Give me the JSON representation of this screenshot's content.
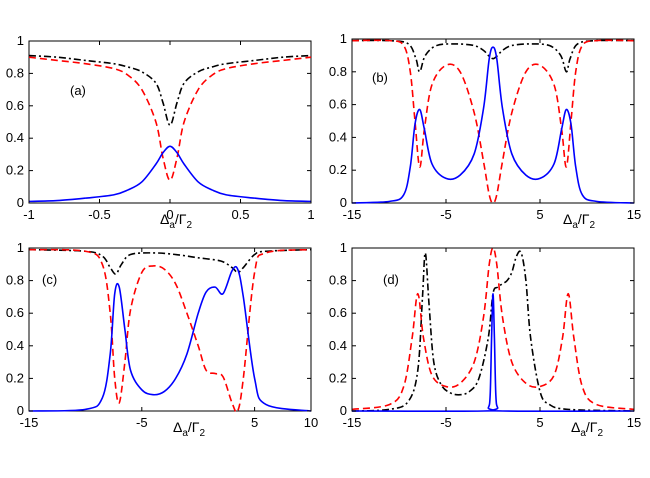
{
  "chart_data": [
    {
      "panel_label": "(a)",
      "type": "line",
      "xlabel": {
        "main1": "Δ",
        "sub1": "a",
        "slash": "/Γ",
        "sub2": "2"
      },
      "xlim": [
        -1,
        1
      ],
      "ylim": [
        0,
        1
      ],
      "xticks": [
        "-1",
        "-0.5",
        "0",
        "0.5",
        "1"
      ],
      "yticks": [
        "0",
        "0.2",
        "0.4",
        "0.6",
        "0.8",
        "1"
      ],
      "series": [
        {
          "style": "dashdot",
          "color": "#000000",
          "x": [
            -1,
            -0.8,
            -0.6,
            -0.4,
            -0.3,
            -0.2,
            -0.1,
            -0.05,
            0,
            0.05,
            0.1,
            0.2,
            0.3,
            0.4,
            0.6,
            0.8,
            1
          ],
          "y": [
            0.91,
            0.9,
            0.88,
            0.86,
            0.84,
            0.81,
            0.74,
            0.62,
            0.48,
            0.62,
            0.74,
            0.81,
            0.84,
            0.86,
            0.88,
            0.9,
            0.91
          ]
        },
        {
          "style": "dashed",
          "color": "#ff0000",
          "x": [
            -1,
            -0.8,
            -0.6,
            -0.4,
            -0.3,
            -0.2,
            -0.1,
            -0.05,
            0,
            0.05,
            0.1,
            0.2,
            0.3,
            0.4,
            0.6,
            0.8,
            1
          ],
          "y": [
            0.9,
            0.88,
            0.86,
            0.83,
            0.79,
            0.7,
            0.5,
            0.28,
            0.14,
            0.28,
            0.5,
            0.7,
            0.79,
            0.83,
            0.86,
            0.88,
            0.9
          ]
        },
        {
          "style": "solid",
          "color": "#0000ff",
          "x": [
            -1,
            -0.8,
            -0.6,
            -0.4,
            -0.3,
            -0.2,
            -0.1,
            -0.05,
            0,
            0.05,
            0.1,
            0.2,
            0.3,
            0.4,
            0.6,
            0.8,
            1
          ],
          "y": [
            0.01,
            0.015,
            0.03,
            0.05,
            0.08,
            0.13,
            0.24,
            0.31,
            0.35,
            0.31,
            0.24,
            0.13,
            0.08,
            0.05,
            0.03,
            0.015,
            0.01
          ]
        }
      ]
    },
    {
      "panel_label": "(b)",
      "type": "line",
      "xlabel": {
        "main1": "Δ",
        "sub1": "a",
        "slash": "/Γ",
        "sub2": "2"
      },
      "xlim": [
        -15,
        15
      ],
      "ylim": [
        0,
        1
      ],
      "xticks": [
        "-15",
        "-5",
        "5",
        "15"
      ],
      "yticks": [
        "0",
        "0.2",
        "0.4",
        "0.6",
        "0.8",
        "1"
      ],
      "series": [
        {
          "style": "dashdot",
          "color": "#000000",
          "x": [
            -15,
            -11,
            -9,
            -8.2,
            -7.8,
            -7.2,
            -6,
            -4,
            -2,
            -1,
            -0.5,
            0,
            0.5,
            1,
            2,
            4,
            6,
            7.2,
            7.8,
            8.2,
            9,
            11,
            15
          ],
          "y": [
            0.99,
            0.99,
            0.97,
            0.88,
            0.8,
            0.9,
            0.96,
            0.97,
            0.96,
            0.93,
            0.9,
            0.88,
            0.9,
            0.93,
            0.96,
            0.97,
            0.96,
            0.9,
            0.8,
            0.88,
            0.97,
            0.99,
            0.99
          ]
        },
        {
          "style": "dashed",
          "color": "#ff0000",
          "x": [
            -15,
            -11,
            -9.5,
            -8.8,
            -8.3,
            -7.8,
            -7.3,
            -6.5,
            -5,
            -3.5,
            -2,
            -1,
            -0.4,
            0,
            0.4,
            1,
            2,
            3.5,
            5,
            6.5,
            7.3,
            7.8,
            8.3,
            8.8,
            9.5,
            11,
            15
          ],
          "y": [
            0.99,
            0.99,
            0.96,
            0.8,
            0.5,
            0.22,
            0.45,
            0.72,
            0.84,
            0.8,
            0.55,
            0.25,
            0.05,
            0.0,
            0.05,
            0.25,
            0.55,
            0.8,
            0.84,
            0.72,
            0.45,
            0.22,
            0.5,
            0.8,
            0.96,
            0.99,
            0.99
          ]
        },
        {
          "style": "solid",
          "color": "#0000ff",
          "x": [
            -15,
            -11,
            -9.5,
            -8.8,
            -8.3,
            -7.8,
            -7.3,
            -6.5,
            -5,
            -3.5,
            -2,
            -1,
            -0.4,
            0,
            0.4,
            1,
            2,
            3.5,
            5,
            6.5,
            7.3,
            7.8,
            8.3,
            8.8,
            9.5,
            11,
            15
          ],
          "y": [
            0.0,
            0.01,
            0.05,
            0.22,
            0.48,
            0.57,
            0.45,
            0.24,
            0.15,
            0.17,
            0.3,
            0.58,
            0.88,
            0.95,
            0.88,
            0.58,
            0.3,
            0.17,
            0.15,
            0.24,
            0.45,
            0.57,
            0.48,
            0.22,
            0.05,
            0.01,
            0.0
          ]
        }
      ]
    },
    {
      "panel_label": "(c)",
      "type": "line",
      "xlabel": {
        "main1": "Δ",
        "sub1": "a",
        "slash": "/Γ",
        "sub2": "2"
      },
      "xlim": [
        -15,
        10
      ],
      "ylim": [
        0,
        1
      ],
      "xticks": [
        "-15",
        "-5",
        "5",
        "10"
      ],
      "yticks": [
        "0",
        "0.2",
        "0.4",
        "0.6",
        "0.8",
        "1"
      ],
      "series": [
        {
          "style": "dashdot",
          "color": "#000000",
          "x": [
            -15,
            -10,
            -8.5,
            -7.8,
            -7.3,
            -6.8,
            -6,
            -4,
            -2,
            0,
            2,
            3,
            3.5,
            4,
            5,
            6,
            10
          ],
          "y": [
            0.99,
            0.98,
            0.95,
            0.88,
            0.84,
            0.9,
            0.96,
            0.97,
            0.96,
            0.94,
            0.92,
            0.88,
            0.85,
            0.88,
            0.96,
            0.98,
            0.99
          ]
        },
        {
          "style": "dashed",
          "color": "#ff0000",
          "x": [
            -15,
            -10,
            -8.5,
            -7.8,
            -7.4,
            -7,
            -6.5,
            -6,
            -5,
            -4,
            -3,
            -2,
            -1,
            0,
            0.7,
            1.5,
            2.2,
            3,
            3.5,
            4,
            5,
            6,
            10
          ],
          "y": [
            0.99,
            0.98,
            0.9,
            0.6,
            0.2,
            0.05,
            0.3,
            0.62,
            0.85,
            0.89,
            0.87,
            0.78,
            0.6,
            0.4,
            0.25,
            0.23,
            0.21,
            0.05,
            0.0,
            0.2,
            0.85,
            0.97,
            0.99
          ]
        },
        {
          "style": "solid",
          "color": "#0000ff",
          "x": [
            -15,
            -10,
            -8.5,
            -7.8,
            -7.4,
            -7,
            -6.5,
            -6,
            -5,
            -4,
            -3,
            -2,
            -1,
            0,
            0.7,
            1.5,
            2.2,
            3,
            3.5,
            4,
            5,
            6,
            10
          ],
          "y": [
            0.0,
            0.01,
            0.08,
            0.35,
            0.72,
            0.76,
            0.5,
            0.25,
            0.13,
            0.1,
            0.12,
            0.2,
            0.35,
            0.6,
            0.73,
            0.76,
            0.72,
            0.86,
            0.87,
            0.7,
            0.2,
            0.04,
            0.0
          ]
        }
      ]
    },
    {
      "panel_label": "(d)",
      "type": "line",
      "xlabel": {
        "main1": "Δ",
        "sub1": "a",
        "slash": "/Γ",
        "sub2": "2"
      },
      "xlim": [
        -15,
        15
      ],
      "ylim": [
        0,
        1
      ],
      "xticks": [
        "-15",
        "-5",
        "5",
        "15"
      ],
      "yticks": [
        "0",
        "0.2",
        "0.4",
        "0.6",
        "0.8",
        "1"
      ],
      "series": [
        {
          "style": "dashdot",
          "color": "#000000",
          "x": [
            -15,
            -11,
            -9,
            -8,
            -7.5,
            -7.2,
            -6.8,
            -6.3,
            -5.5,
            -4.5,
            -3.5,
            -2.5,
            -1.5,
            -0.5,
            0,
            0.5,
            1,
            1.5,
            2,
            2.5,
            3,
            3.5,
            4,
            5,
            6,
            8,
            15
          ],
          "y": [
            0.0,
            0.01,
            0.06,
            0.25,
            0.7,
            0.97,
            0.65,
            0.3,
            0.16,
            0.11,
            0.1,
            0.12,
            0.2,
            0.45,
            0.72,
            0.76,
            0.78,
            0.8,
            0.85,
            0.95,
            0.97,
            0.8,
            0.45,
            0.12,
            0.04,
            0.01,
            0.0
          ]
        },
        {
          "style": "dashed",
          "color": "#ff0000",
          "x": [
            -15,
            -11,
            -9.5,
            -8.6,
            -8,
            -7.4,
            -6.5,
            -5,
            -3.5,
            -2,
            -1,
            -0.4,
            0,
            0.4,
            1,
            2,
            3.5,
            5,
            6.5,
            7.4,
            8,
            8.6,
            9.5,
            11,
            15
          ],
          "y": [
            0.01,
            0.04,
            0.15,
            0.45,
            0.72,
            0.45,
            0.22,
            0.15,
            0.17,
            0.3,
            0.58,
            0.9,
            1.0,
            0.9,
            0.58,
            0.3,
            0.17,
            0.15,
            0.22,
            0.45,
            0.72,
            0.45,
            0.15,
            0.04,
            0.01
          ]
        },
        {
          "style": "solid",
          "color": "#0000ff",
          "x": [
            -15,
            -1,
            -0.5,
            -0.3,
            -0.15,
            0,
            0.15,
            0.3,
            0.5,
            1,
            15
          ],
          "y": [
            0.0,
            0.0,
            0.02,
            0.1,
            0.45,
            0.72,
            0.45,
            0.1,
            0.02,
            0.0,
            0.0
          ]
        }
      ]
    }
  ]
}
